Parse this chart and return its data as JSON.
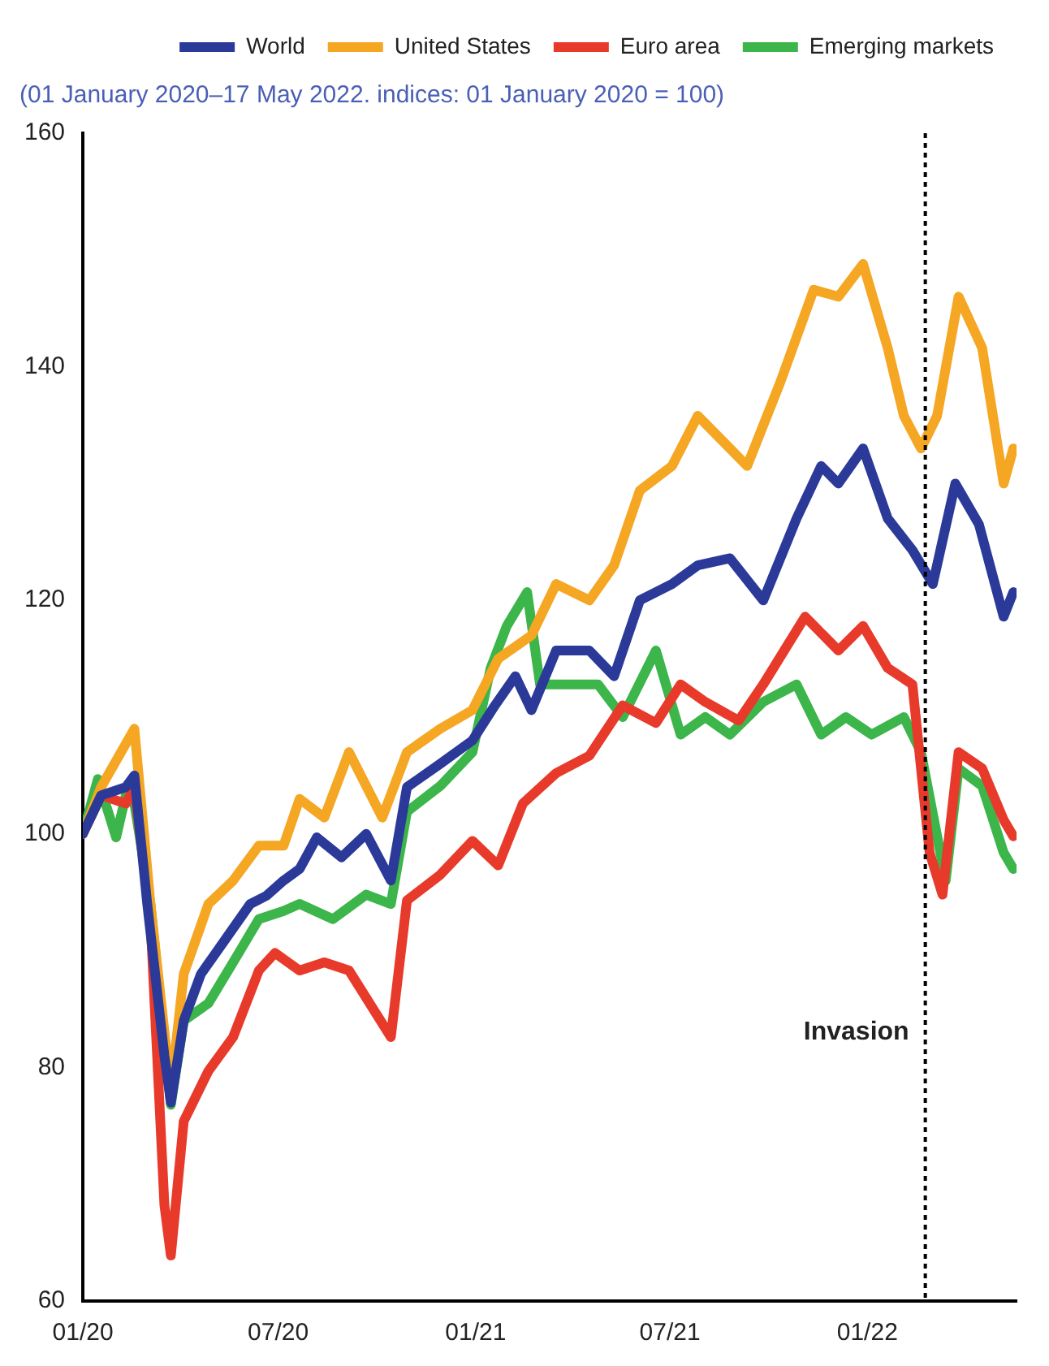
{
  "chart_data": {
    "type": "line",
    "subtitle": "(01 January 2020–17 May 2022. indices: 01 January 2020 = 100)",
    "xlim": [
      "2020-01-01",
      "2022-05-20"
    ],
    "xticks": [
      {
        "value": "2020-01-01",
        "label": "01/20"
      },
      {
        "value": "2020-07-01",
        "label": "07/20"
      },
      {
        "value": "2021-01-01",
        "label": "01/21"
      },
      {
        "value": "2021-07-01",
        "label": "07/21"
      },
      {
        "value": "2022-01-01",
        "label": "01/22"
      }
    ],
    "ylim": [
      60,
      160
    ],
    "yticks": [
      60,
      80,
      100,
      120,
      140,
      160
    ],
    "grid": false,
    "legend": "top right",
    "line_style": "solid",
    "ref_lines": [
      {
        "axis": "x",
        "value": "2022-02-24",
        "label": "Invasion",
        "line_style": "dotted",
        "color": "#000000"
      }
    ],
    "series": [
      {
        "name": "World",
        "color": "#2b3a98",
        "x": [
          "2020-01-01",
          "2020-01-18",
          "2020-02-10",
          "2020-02-18",
          "2020-03-01",
          "2020-03-17",
          "2020-03-23",
          "2020-04-04",
          "2020-04-20",
          "2020-05-13",
          "2020-06-05",
          "2020-06-20",
          "2020-07-06",
          "2020-07-21",
          "2020-08-06",
          "2020-08-29",
          "2020-09-21",
          "2020-10-14",
          "2020-10-29",
          "2020-11-29",
          "2020-12-29",
          "2021-01-19",
          "2021-02-07",
          "2021-02-22",
          "2021-03-17",
          "2021-04-17",
          "2021-05-10",
          "2021-06-03",
          "2021-07-03",
          "2021-07-27",
          "2021-08-26",
          "2021-09-26",
          "2021-10-27",
          "2021-11-19",
          "2021-12-05",
          "2021-12-28",
          "2022-01-20",
          "2022-02-12",
          "2022-03-03",
          "2022-03-24",
          "2022-04-15",
          "2022-05-08",
          "2022-05-17"
        ],
        "values": [
          100,
          103.3,
          104,
          105,
          94,
          81,
          77,
          84,
          88,
          91,
          94,
          94.7,
          96,
          97,
          99.7,
          98,
          100,
          96,
          104,
          106,
          108,
          111,
          113.5,
          110.6,
          115.7,
          115.7,
          113.5,
          120,
          121.4,
          123,
          123.6,
          120,
          127,
          131.5,
          130,
          133,
          127,
          124.3,
          121.4,
          130,
          126.5,
          118.6,
          120.7
        ]
      },
      {
        "name": "United States",
        "color": "#f5a623",
        "x": [
          "2020-01-01",
          "2020-01-18",
          "2020-02-18",
          "2020-03-04",
          "2020-03-23",
          "2020-04-04",
          "2020-04-27",
          "2020-05-20",
          "2020-06-13",
          "2020-07-06",
          "2020-07-21",
          "2020-08-13",
          "2020-09-05",
          "2020-10-06",
          "2020-10-29",
          "2020-11-29",
          "2020-12-29",
          "2021-01-22",
          "2021-02-22",
          "2021-03-17",
          "2021-04-17",
          "2021-05-10",
          "2021-06-03",
          "2021-07-03",
          "2021-07-27",
          "2021-08-26",
          "2021-09-11",
          "2021-10-12",
          "2021-11-12",
          "2021-12-05",
          "2021-12-28",
          "2022-01-20",
          "2022-02-04",
          "2022-02-20",
          "2022-03-07",
          "2022-03-27",
          "2022-04-18",
          "2022-05-08",
          "2022-05-17"
        ],
        "values": [
          100,
          104,
          109,
          94,
          78,
          88,
          94,
          96,
          99,
          99,
          103,
          101.4,
          107,
          101.4,
          107,
          109,
          110.6,
          115,
          117,
          121.4,
          120,
          123,
          129.4,
          131.5,
          135.8,
          133,
          131.5,
          138.7,
          146.6,
          146,
          148.8,
          141.6,
          135.8,
          133,
          135.8,
          146,
          141.6,
          130,
          133
        ]
      },
      {
        "name": "Euro area",
        "color": "#e83a2a",
        "x": [
          "2020-01-01",
          "2020-01-18",
          "2020-02-10",
          "2020-02-18",
          "2020-03-04",
          "2020-03-17",
          "2020-03-23",
          "2020-04-04",
          "2020-04-27",
          "2020-05-20",
          "2020-06-13",
          "2020-06-28",
          "2020-07-21",
          "2020-08-13",
          "2020-09-05",
          "2020-10-14",
          "2020-10-29",
          "2020-11-29",
          "2020-12-29",
          "2021-01-22",
          "2021-02-14",
          "2021-03-17",
          "2021-04-17",
          "2021-05-18",
          "2021-06-18",
          "2021-07-11",
          "2021-08-03",
          "2021-09-03",
          "2021-09-26",
          "2021-11-04",
          "2021-12-05",
          "2021-12-28",
          "2022-01-20",
          "2022-02-12",
          "2022-02-28",
          "2022-03-12",
          "2022-03-27",
          "2022-04-18",
          "2022-05-08",
          "2022-05-17"
        ],
        "values": [
          100,
          103.3,
          102.6,
          104,
          92.7,
          68.2,
          63.9,
          75.4,
          79.7,
          82.6,
          88.3,
          89.8,
          88.3,
          89,
          88.3,
          82.6,
          94.3,
          96.5,
          99.4,
          97.3,
          102.6,
          105.2,
          106.7,
          111,
          109.5,
          112.8,
          111.3,
          109.7,
          112.8,
          118.6,
          115.7,
          117.8,
          114.2,
          112.8,
          98.4,
          94.8,
          107,
          105.6,
          101.2,
          99.8
        ]
      },
      {
        "name": "Emerging markets",
        "color": "#3cb54a",
        "x": [
          "2020-01-01",
          "2020-01-15",
          "2020-02-01",
          "2020-02-10",
          "2020-02-18",
          "2020-03-04",
          "2020-03-23",
          "2020-04-04",
          "2020-04-27",
          "2020-05-20",
          "2020-06-13",
          "2020-07-06",
          "2020-07-21",
          "2020-08-21",
          "2020-09-21",
          "2020-10-14",
          "2020-10-29",
          "2020-11-29",
          "2020-12-29",
          "2021-01-15",
          "2021-01-30",
          "2021-02-18",
          "2021-03-02",
          "2021-03-25",
          "2021-04-25",
          "2021-05-18",
          "2021-06-18",
          "2021-07-11",
          "2021-08-03",
          "2021-08-26",
          "2021-09-26",
          "2021-10-27",
          "2021-11-19",
          "2021-12-12",
          "2022-01-05",
          "2022-02-04",
          "2022-02-20",
          "2022-03-15",
          "2022-03-27",
          "2022-04-18",
          "2022-05-08",
          "2022-05-17"
        ],
        "values": [
          100,
          104.7,
          99.7,
          103.3,
          102.6,
          94,
          76.8,
          84,
          85.5,
          89,
          92.7,
          93.4,
          94,
          92.7,
          94.8,
          94,
          101.9,
          104.1,
          107,
          114.2,
          117.8,
          120.7,
          112.8,
          112.8,
          112.8,
          110,
          115.7,
          108.5,
          110,
          108.5,
          111.3,
          112.8,
          108.5,
          110,
          108.5,
          110,
          107,
          96,
          105.6,
          104.1,
          98.4,
          97
        ]
      }
    ]
  }
}
